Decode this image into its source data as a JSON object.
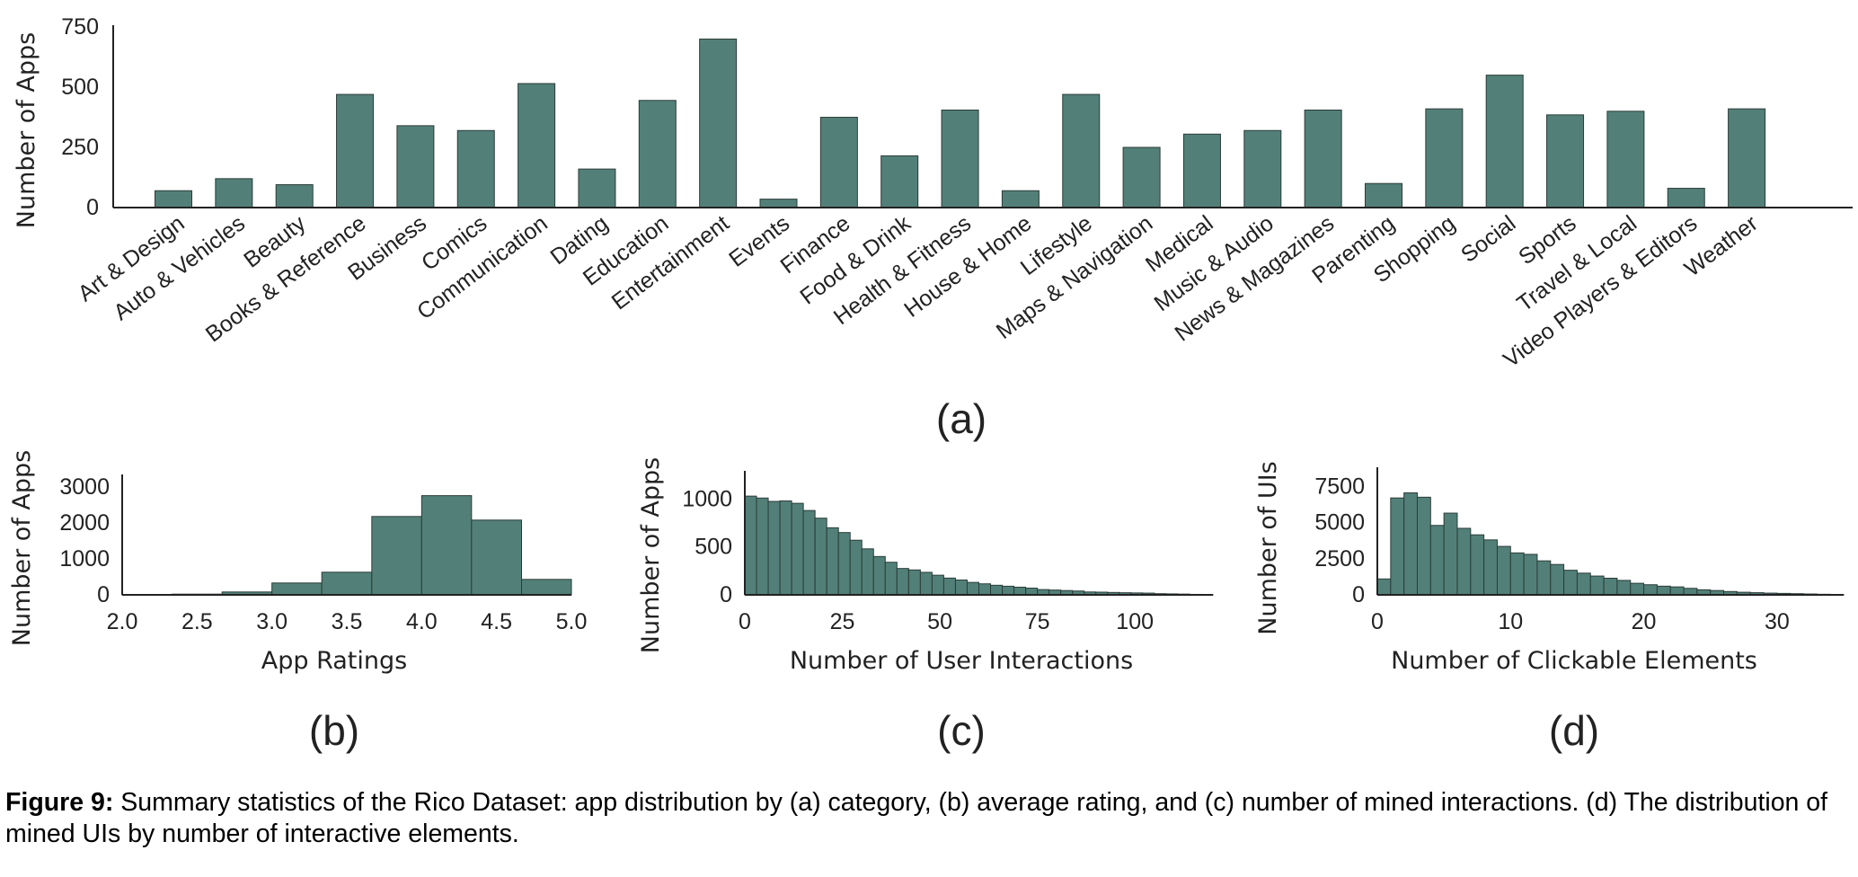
{
  "colors": {
    "bar": "#528078",
    "bar_edge": "#2b3b38",
    "axis": "#222222"
  },
  "chart_data": [
    {
      "id": "a",
      "type": "bar",
      "panel_label": "(a)",
      "ylabel": "Number of Apps",
      "xlabel": "",
      "ylim": [
        0,
        780
      ],
      "yticks": [
        0,
        250,
        500,
        750
      ],
      "categories": [
        "Art & Design",
        "Auto & Vehicles",
        "Beauty",
        "Books & Reference",
        "Business",
        "Comics",
        "Communication",
        "Dating",
        "Education",
        "Entertainment",
        "Events",
        "Finance",
        "Food & Drink",
        "Health & Fitness",
        "House & Home",
        "Lifestyle",
        "Maps & Navigation",
        "Medical",
        "Music & Audio",
        "News & Magazines",
        "Parenting",
        "Shopping",
        "Social",
        "Sports",
        "Travel & Local",
        "Video Players & Editors",
        "Weather"
      ],
      "values": [
        70,
        120,
        95,
        470,
        340,
        320,
        515,
        160,
        445,
        700,
        35,
        375,
        215,
        405,
        70,
        470,
        250,
        305,
        320,
        405,
        100,
        410,
        550,
        385,
        400,
        80,
        410
      ]
    },
    {
      "id": "b",
      "type": "bar",
      "panel_label": "(b)",
      "ylabel": "Number of Apps",
      "xlabel": "App Ratings",
      "xlim": [
        2.0,
        5.0
      ],
      "ylim": [
        0,
        3100
      ],
      "xticks": [
        "2.0",
        "2.5",
        "3.0",
        "3.5",
        "4.0",
        "4.5",
        "5.0"
      ],
      "yticks": [
        0,
        1000,
        2000,
        3000
      ],
      "bin_edges": [
        2.0,
        2.333,
        2.667,
        3.0,
        3.333,
        3.667,
        4.0,
        4.333,
        4.667,
        5.0
      ],
      "values": [
        10,
        20,
        80,
        330,
        630,
        2180,
        2760,
        2080,
        430
      ]
    },
    {
      "id": "c",
      "type": "bar",
      "panel_label": "(c)",
      "ylabel": "Number of Apps",
      "xlabel": "Number of User Interactions",
      "xlim": [
        0,
        120
      ],
      "ylim": [
        0,
        1200
      ],
      "xticks": [
        "0",
        "25",
        "50",
        "75",
        "100"
      ],
      "yticks": [
        0,
        500,
        1000
      ],
      "bin_width": 3,
      "values": [
        1030,
        1010,
        975,
        980,
        955,
        880,
        800,
        700,
        650,
        570,
        480,
        400,
        340,
        275,
        260,
        235,
        205,
        175,
        155,
        130,
        115,
        100,
        90,
        80,
        70,
        55,
        50,
        45,
        40,
        30,
        28,
        25,
        22,
        20,
        18,
        12,
        10,
        8,
        5,
        3
      ]
    },
    {
      "id": "d",
      "type": "bar",
      "panel_label": "(d)",
      "ylabel": "Number of UIs",
      "xlabel": "Number of Clickable Elements",
      "xlim": [
        0,
        35
      ],
      "ylim": [
        0,
        8200
      ],
      "xticks": [
        "0",
        "10",
        "20",
        "30"
      ],
      "yticks": [
        0,
        2500,
        5000,
        7500
      ],
      "bin_width": 1,
      "values": [
        1100,
        6700,
        7050,
        6750,
        4800,
        5650,
        4600,
        4150,
        3800,
        3350,
        2900,
        2800,
        2350,
        2100,
        1700,
        1500,
        1300,
        1150,
        1000,
        800,
        700,
        600,
        550,
        450,
        350,
        300,
        230,
        180,
        150,
        120,
        100,
        80,
        60,
        40,
        20
      ]
    }
  ],
  "caption": {
    "label": "Figure 9:",
    "text": " Summary statistics of the Rico Dataset: app distribution by (a) category, (b) average rating, and (c) number of mined interactions. (d) The distribution of mined UIs by number of interactive elements."
  }
}
